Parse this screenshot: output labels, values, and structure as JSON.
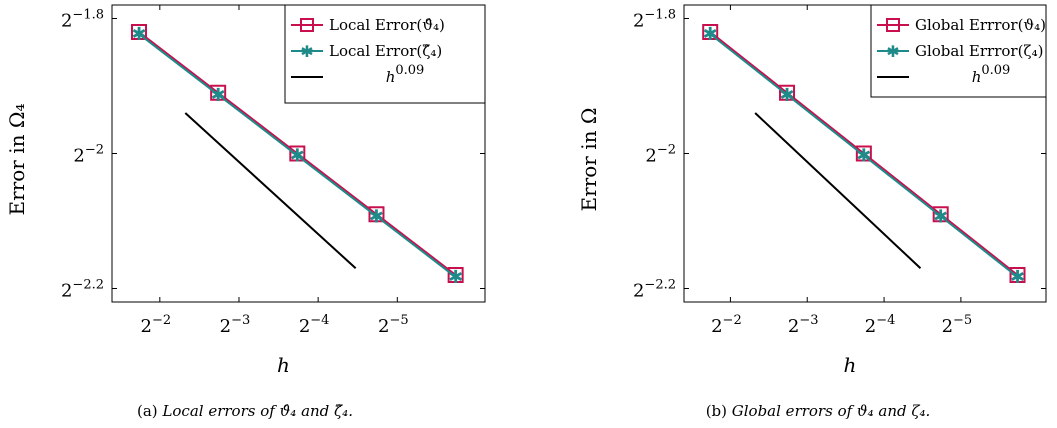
{
  "chart_data": [
    {
      "type": "line",
      "xlabel": "h",
      "ylabel": "Error in Ω₄",
      "x_scale": "log2",
      "y_scale": "log2",
      "x_axis_reversed": true,
      "x": [
        0.3,
        0.15,
        0.075,
        0.0375,
        0.01875
      ],
      "x_ticks": [
        {
          "value": 0.25,
          "base": "2",
          "exp": "−2"
        },
        {
          "value": 0.125,
          "base": "2",
          "exp": "−3"
        },
        {
          "value": 0.0625,
          "base": "2",
          "exp": "−4"
        },
        {
          "value": 0.03125,
          "base": "2",
          "exp": "−5"
        }
      ],
      "y_ticks": [
        {
          "value": -1.8,
          "base": "2",
          "exp": "−1.8"
        },
        {
          "value": -2.0,
          "base": "2",
          "exp": "−2"
        },
        {
          "value": -2.2,
          "base": "2",
          "exp": "−2.2"
        }
      ],
      "ylim_log2": [
        -2.22,
        -1.78
      ],
      "series": [
        {
          "name": "Local Error(ϑ̂₄)",
          "color": "#c8104e",
          "marker": "square",
          "values_log2": [
            -1.82,
            -1.91,
            -2.0,
            -2.09,
            -2.18
          ]
        },
        {
          "name": "Local Error(ζ̂₄)",
          "color": "#1f8a8a",
          "marker": "star",
          "values_log2": [
            -1.823,
            -1.913,
            -2.003,
            -2.093,
            -2.183
          ]
        }
      ],
      "reference": {
        "name": "h^0.09",
        "label_base": "h",
        "label_exp": "0.09",
        "color": "#000000",
        "x": [
          0.2,
          0.045
        ],
        "values_log2": [
          -1.94,
          -2.17
        ]
      },
      "legend_position": "top-right",
      "caption": {
        "tag": "(a)",
        "text": "Local errors of ϑ̂₄ and ζ̂₄."
      }
    },
    {
      "type": "line",
      "xlabel": "h",
      "ylabel": "Error in Ω",
      "x_scale": "log2",
      "y_scale": "log2",
      "x_axis_reversed": true,
      "x": [
        0.3,
        0.15,
        0.075,
        0.0375,
        0.01875
      ],
      "x_ticks": [
        {
          "value": 0.25,
          "base": "2",
          "exp": "−2"
        },
        {
          "value": 0.125,
          "base": "2",
          "exp": "−3"
        },
        {
          "value": 0.0625,
          "base": "2",
          "exp": "−4"
        },
        {
          "value": 0.03125,
          "base": "2",
          "exp": "−5"
        }
      ],
      "y_ticks": [
        {
          "value": -1.8,
          "base": "2",
          "exp": "−1.8"
        },
        {
          "value": -2.0,
          "base": "2",
          "exp": "−2"
        },
        {
          "value": -2.2,
          "base": "2",
          "exp": "−2.2"
        }
      ],
      "ylim_log2": [
        -2.22,
        -1.78
      ],
      "series": [
        {
          "name": "Global Errror(ϑ₄)",
          "color": "#c8104e",
          "marker": "square",
          "values_log2": [
            -1.82,
            -1.91,
            -2.0,
            -2.09,
            -2.18
          ]
        },
        {
          "name": "Global Errror(ζ₄)",
          "color": "#1f8a8a",
          "marker": "star",
          "values_log2": [
            -1.823,
            -1.913,
            -2.003,
            -2.093,
            -2.183
          ]
        }
      ],
      "reference": {
        "name": "h^0.09",
        "label_base": "h",
        "label_exp": "0.09",
        "color": "#000000",
        "x": [
          0.2,
          0.045
        ],
        "values_log2": [
          -1.94,
          -2.17
        ]
      },
      "legend_position": "top-right",
      "caption": {
        "tag": "(b)",
        "text": "Global errors of ϑ₄ and ζ₄."
      }
    }
  ]
}
